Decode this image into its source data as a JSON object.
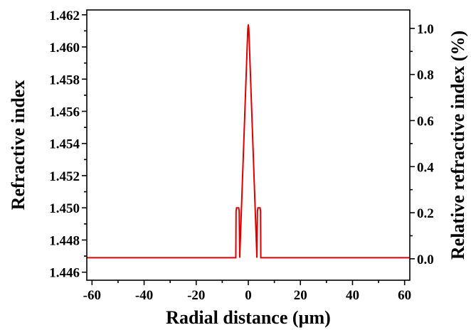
{
  "chart_data": {
    "type": "line",
    "title": "",
    "xlabel": "Radial distance (µm)",
    "ylabel": "Refractive index",
    "y2label": "Relative refractive index (%)",
    "xlim": [
      -62,
      62
    ],
    "ylim": [
      1.4455,
      1.4623
    ],
    "y2lim": [
      -0.093,
      1.08
    ],
    "x_ticks": [
      -60,
      -40,
      -20,
      0,
      20,
      40,
      60
    ],
    "x_tick_labels": [
      "-60",
      "-40",
      "-20",
      "0",
      "20",
      "40",
      "60"
    ],
    "y_ticks": [
      1.446,
      1.448,
      1.45,
      1.452,
      1.454,
      1.456,
      1.458,
      1.46,
      1.462
    ],
    "y_tick_labels": [
      "1.446",
      "1.448",
      "1.450",
      "1.452",
      "1.454",
      "1.456",
      "1.458",
      "1.460",
      "1.462"
    ],
    "y2_ticks": [
      0.0,
      0.2,
      0.4,
      0.6,
      0.8,
      1.0
    ],
    "y2_tick_labels": [
      "0.0",
      "0.2",
      "0.4",
      "0.6",
      "0.8",
      "1.0"
    ],
    "grid": false,
    "series": [
      {
        "color": "#dd0000",
        "x": [
          -62,
          -4.8,
          -4.7,
          -4.5,
          -3.7,
          -3.5,
          -3.4,
          -3.3,
          -0.2,
          0.0,
          0.2,
          3.3,
          3.4,
          3.5,
          3.7,
          4.5,
          4.7,
          4.8,
          62
        ],
        "y": [
          1.4469,
          1.4469,
          1.4498,
          1.45,
          1.45,
          1.4498,
          1.4485,
          1.4469,
          1.4611,
          1.4614,
          1.4611,
          1.4469,
          1.4485,
          1.4498,
          1.45,
          1.45,
          1.4498,
          1.4469,
          1.4469
        ]
      }
    ]
  }
}
